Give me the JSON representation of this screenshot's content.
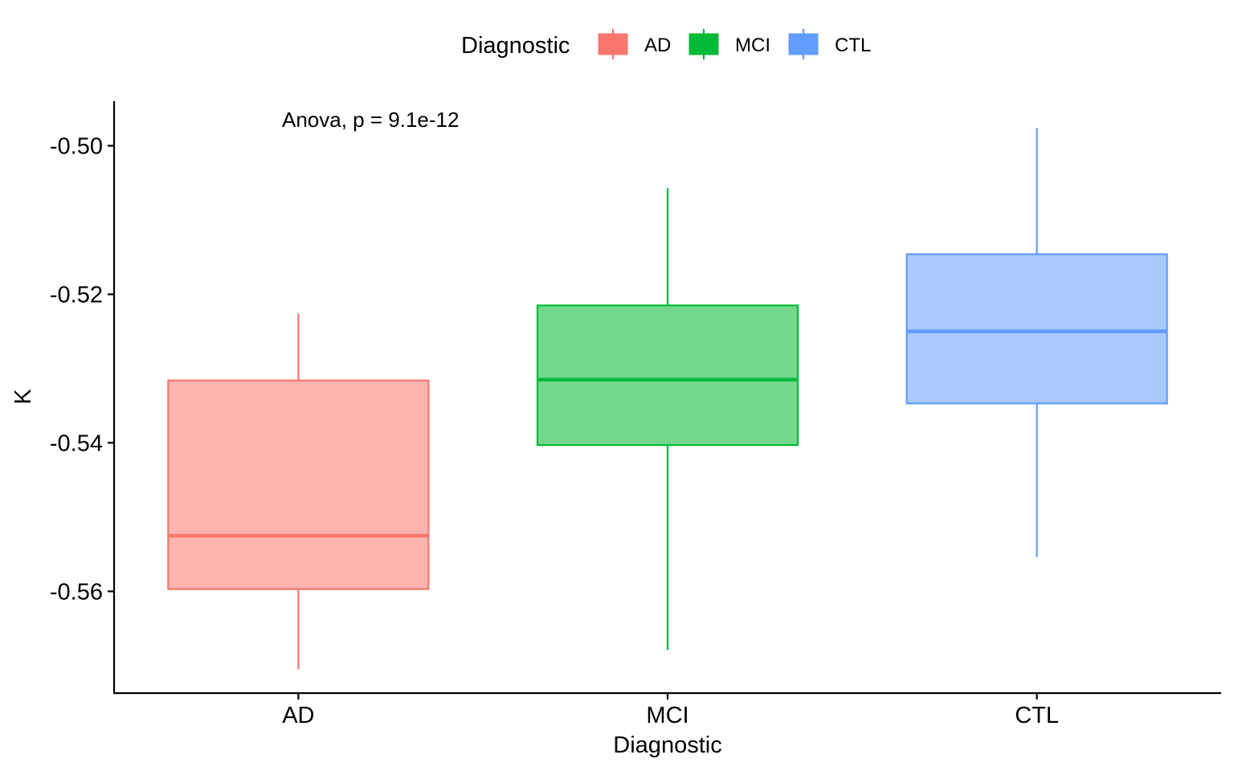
{
  "chart_data": {
    "type": "box",
    "xlabel": "Diagnostic",
    "ylabel": "K",
    "annotation": "Anova, p = 9.1e-12",
    "legend": {
      "title": "Diagnostic",
      "position": "top",
      "entries": [
        "AD",
        "MCI",
        "CTL"
      ]
    },
    "categories": [
      "AD",
      "MCI",
      "CTL"
    ],
    "colors": {
      "AD": {
        "stroke": "#F8766D",
        "fill": "#FBB4AE"
      },
      "MCI": {
        "stroke": "#00BA38",
        "fill": "#72D98C"
      },
      "CTL": {
        "stroke": "#619CFF",
        "fill": "#A9C8FF"
      }
    },
    "boxes": [
      {
        "category": "AD",
        "whisker_low": -0.5705,
        "q1": -0.5597,
        "median": -0.5525,
        "q3": -0.5316,
        "whisker_high": -0.5226
      },
      {
        "category": "MCI",
        "whisker_low": -0.5679,
        "q1": -0.5403,
        "median": -0.5315,
        "q3": -0.5215,
        "whisker_high": -0.5057
      },
      {
        "category": "CTL",
        "whisker_low": -0.5554,
        "q1": -0.5347,
        "median": -0.525,
        "q3": -0.5146,
        "whisker_high": -0.4976
      }
    ],
    "y_ticks": [
      -0.5,
      -0.52,
      -0.54,
      -0.56
    ],
    "y_tick_labels": [
      "-0.50",
      "-0.52",
      "-0.54",
      "-0.56"
    ],
    "ylim": [
      -0.5737,
      -0.494
    ],
    "grid": false
  }
}
